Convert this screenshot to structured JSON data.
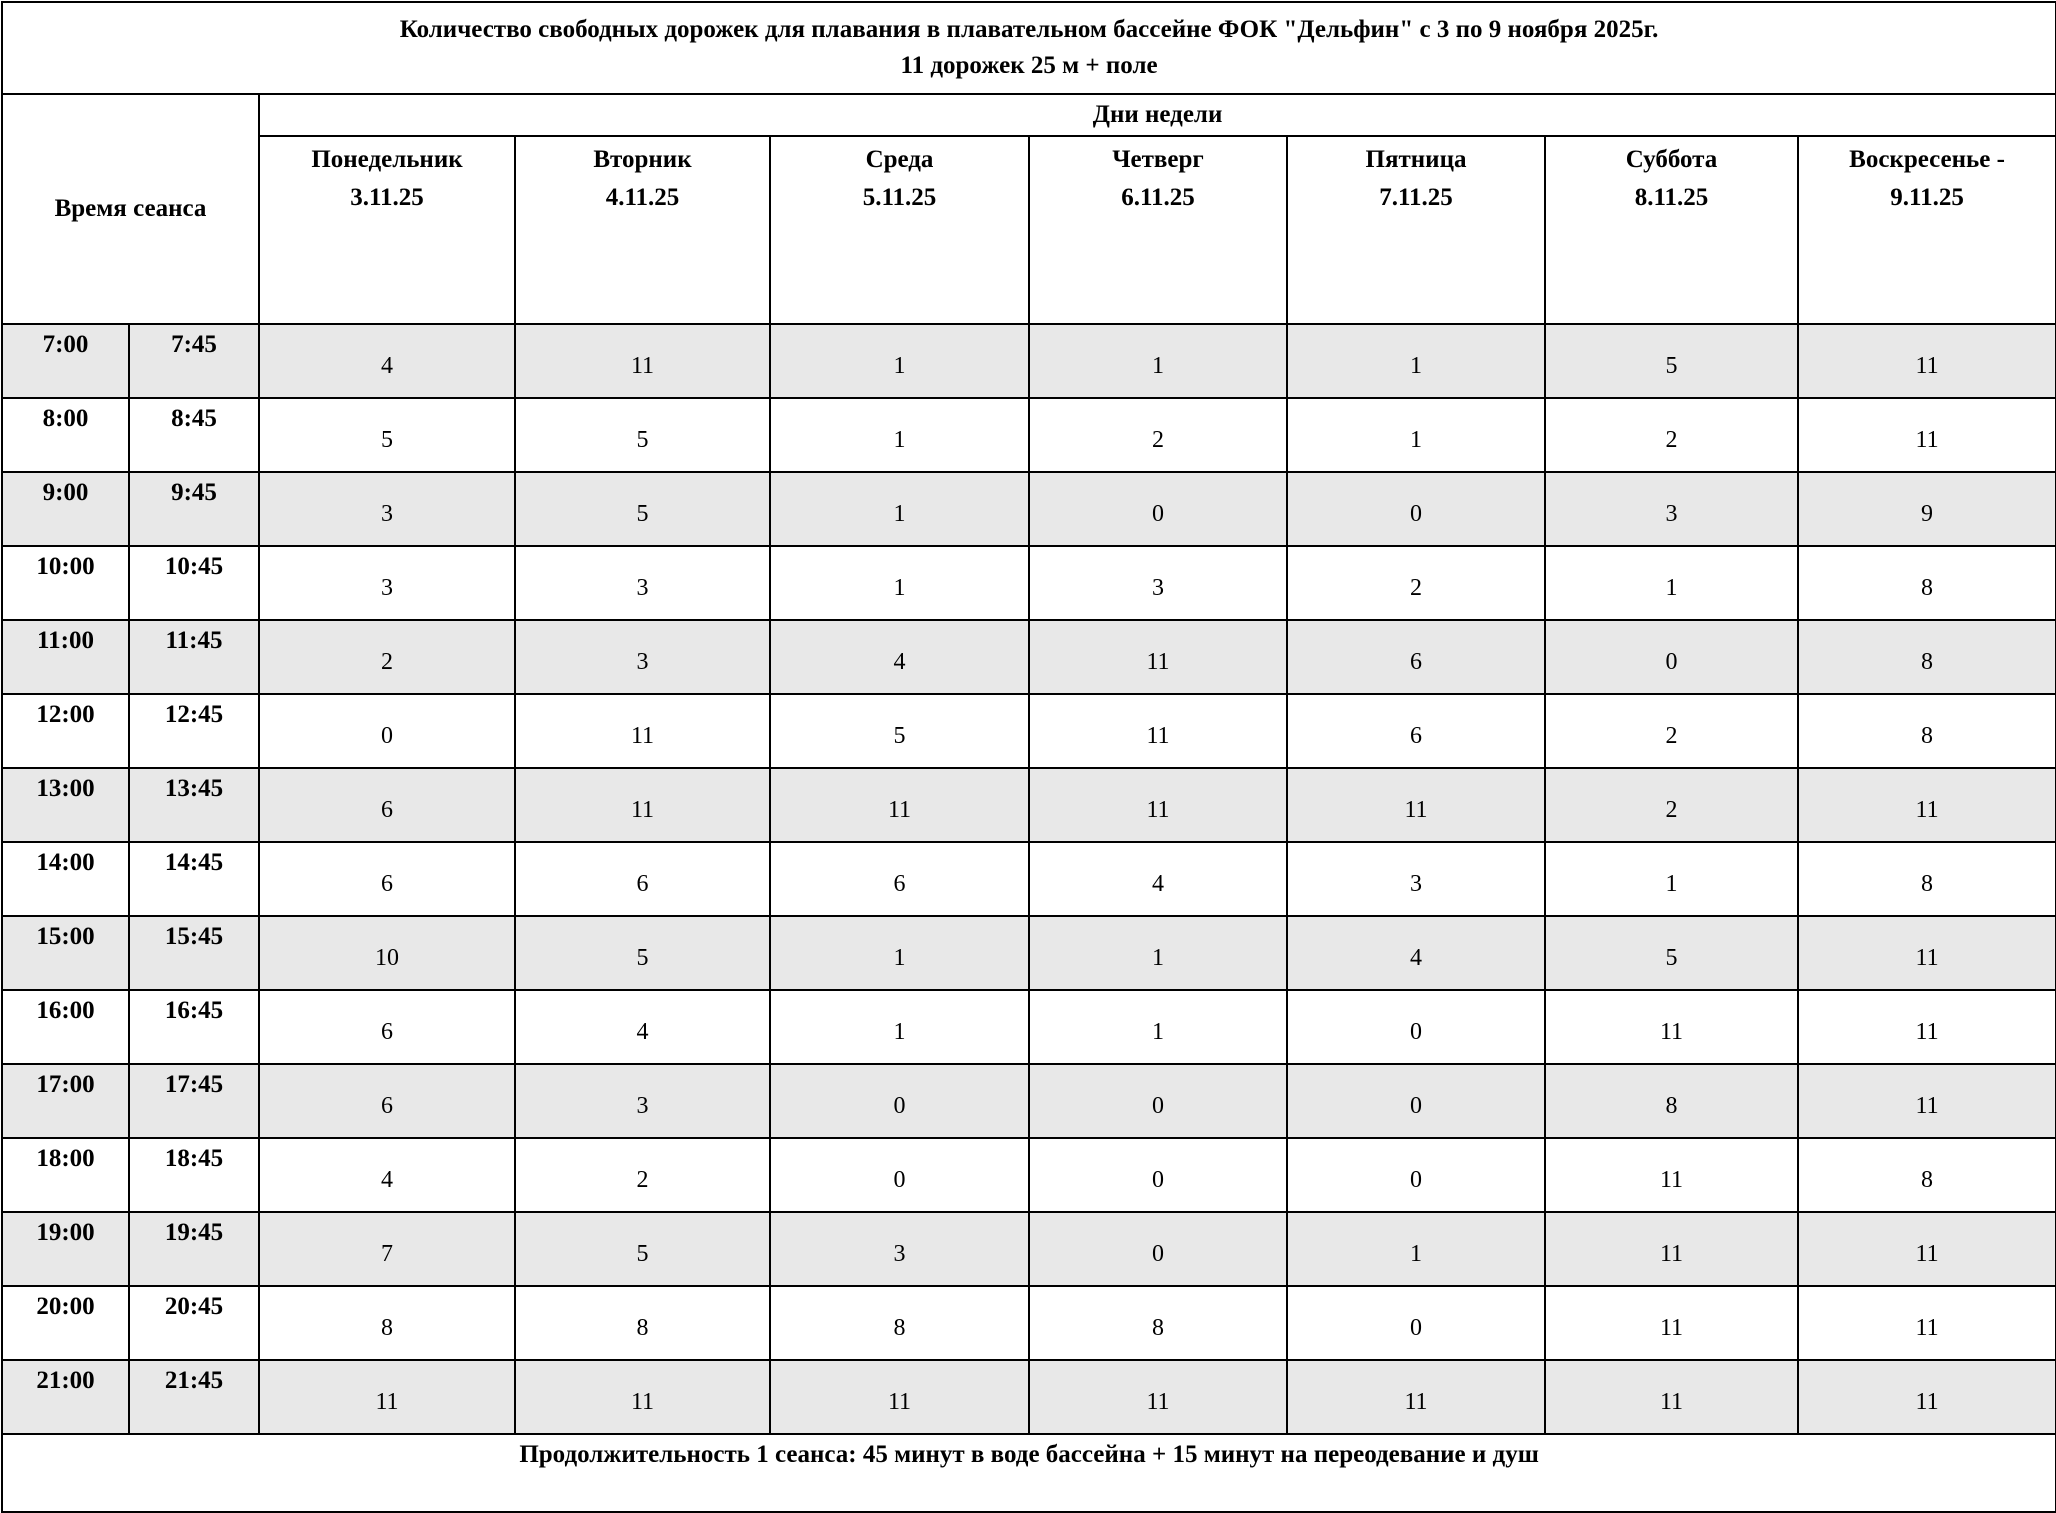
{
  "title": {
    "line1": "Количество свободных дорожек для плавания в плавательном бассейне ФОК \"Дельфин\" с 3 по 9 ноября 2025г.",
    "line2": "11 дорожек 25 м + поле"
  },
  "time_header": "Время сеанса",
  "days_header": "Дни недели",
  "days": [
    {
      "name": "Понедельник",
      "date": "3.11.25"
    },
    {
      "name": "Вторник",
      "date": "4.11.25"
    },
    {
      "name": "Среда",
      "date": "5.11.25"
    },
    {
      "name": "Четверг",
      "date": "6.11.25"
    },
    {
      "name": "Пятница",
      "date": "7.11.25"
    },
    {
      "name": "Суббота",
      "date": "8.11.25"
    },
    {
      "name": "Воскресенье -",
      "date": "9.11.25"
    }
  ],
  "rows": [
    {
      "start": "7:00",
      "end": "7:45",
      "values": [
        "4",
        "11",
        "1",
        "1",
        "1",
        "5",
        "11"
      ]
    },
    {
      "start": "8:00",
      "end": "8:45",
      "values": [
        "5",
        "5",
        "1",
        "2",
        "1",
        "2",
        "11"
      ]
    },
    {
      "start": "9:00",
      "end": "9:45",
      "values": [
        "3",
        "5",
        "1",
        "0",
        "0",
        "3",
        "9"
      ]
    },
    {
      "start": "10:00",
      "end": "10:45",
      "values": [
        "3",
        "3",
        "1",
        "3",
        "2",
        "1",
        "8"
      ]
    },
    {
      "start": "11:00",
      "end": "11:45",
      "values": [
        "2",
        "3",
        "4",
        "11",
        "6",
        "0",
        "8"
      ]
    },
    {
      "start": "12:00",
      "end": "12:45",
      "values": [
        "0",
        "11",
        "5",
        "11",
        "6",
        "2",
        "8"
      ]
    },
    {
      "start": "13:00",
      "end": "13:45",
      "values": [
        "6",
        "11",
        "11",
        "11",
        "11",
        "2",
        "11"
      ]
    },
    {
      "start": "14:00",
      "end": "14:45",
      "values": [
        "6",
        "6",
        "6",
        "4",
        "3",
        "1",
        "8"
      ]
    },
    {
      "start": "15:00",
      "end": "15:45",
      "values": [
        "10",
        "5",
        "1",
        "1",
        "4",
        "5",
        "11"
      ]
    },
    {
      "start": "16:00",
      "end": "16:45",
      "values": [
        "6",
        "4",
        "1",
        "1",
        "0",
        "11",
        "11"
      ]
    },
    {
      "start": "17:00",
      "end": "17:45",
      "values": [
        "6",
        "3",
        "0",
        "0",
        "0",
        "8",
        "11"
      ]
    },
    {
      "start": "18:00",
      "end": "18:45",
      "values": [
        "4",
        "2",
        "0",
        "0",
        "0",
        "11",
        "8"
      ]
    },
    {
      "start": "19:00",
      "end": "19:45",
      "values": [
        "7",
        "5",
        "3",
        "0",
        "1",
        "11",
        "11"
      ]
    },
    {
      "start": "20:00",
      "end": "20:45",
      "values": [
        "8",
        "8",
        "8",
        "8",
        "0",
        "11",
        "11"
      ]
    },
    {
      "start": "21:00",
      "end": "21:45",
      "values": [
        "11",
        "11",
        "11",
        "11",
        "11",
        "11",
        "11"
      ]
    }
  ],
  "footer": "Продолжительность 1 сеанса: 45 минут в воде бассейна + 15 минут на переодевание и душ",
  "colors": {
    "shaded_row": "#e8e8e8",
    "border": "#000000"
  }
}
